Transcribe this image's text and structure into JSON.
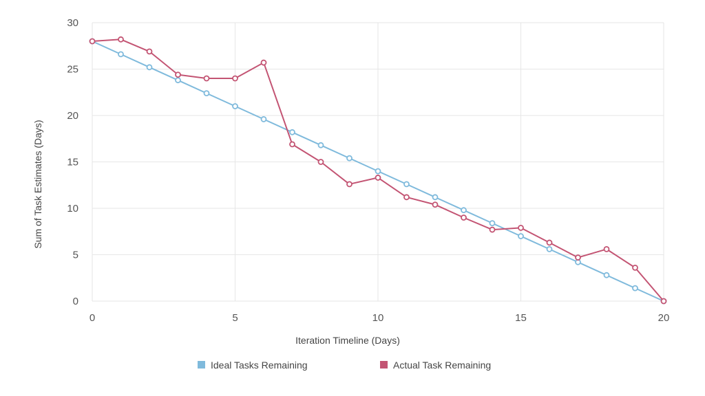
{
  "chart_data": {
    "type": "line",
    "title": "",
    "xlabel": "Iteration Timeline (Days)",
    "ylabel": "Sum of Task Estimates (Days)",
    "xlim": [
      0,
      20
    ],
    "ylim": [
      0,
      30
    ],
    "x_ticks": [
      0,
      5,
      10,
      15,
      20
    ],
    "y_ticks": [
      0,
      5,
      10,
      15,
      20,
      25,
      30
    ],
    "grid": true,
    "legend_position": "bottom",
    "series": [
      {
        "name": "Ideal Tasks Remaining",
        "color": "#7fbadc",
        "x": [
          0,
          1,
          2,
          3,
          4,
          5,
          6,
          7,
          8,
          9,
          10,
          11,
          12,
          13,
          14,
          15,
          16,
          17,
          18,
          19,
          20
        ],
        "values": [
          28.0,
          26.6,
          25.2,
          23.8,
          22.4,
          21.0,
          19.6,
          18.2,
          16.8,
          15.4,
          14.0,
          12.6,
          11.2,
          9.8,
          8.4,
          7.0,
          5.6,
          4.2,
          2.8,
          1.4,
          0.0
        ]
      },
      {
        "name": "Actual Task Remaining",
        "color": "#c35473",
        "x": [
          0,
          1,
          2,
          3,
          4,
          5,
          6,
          7,
          8,
          9,
          10,
          11,
          12,
          13,
          14,
          15,
          16,
          17,
          18,
          19,
          20
        ],
        "values": [
          28.0,
          28.2,
          26.9,
          24.4,
          24.0,
          24.0,
          25.7,
          16.9,
          15.0,
          12.6,
          13.3,
          11.2,
          10.4,
          9.0,
          7.7,
          7.9,
          6.3,
          4.7,
          5.6,
          3.6,
          0.0
        ]
      }
    ]
  }
}
